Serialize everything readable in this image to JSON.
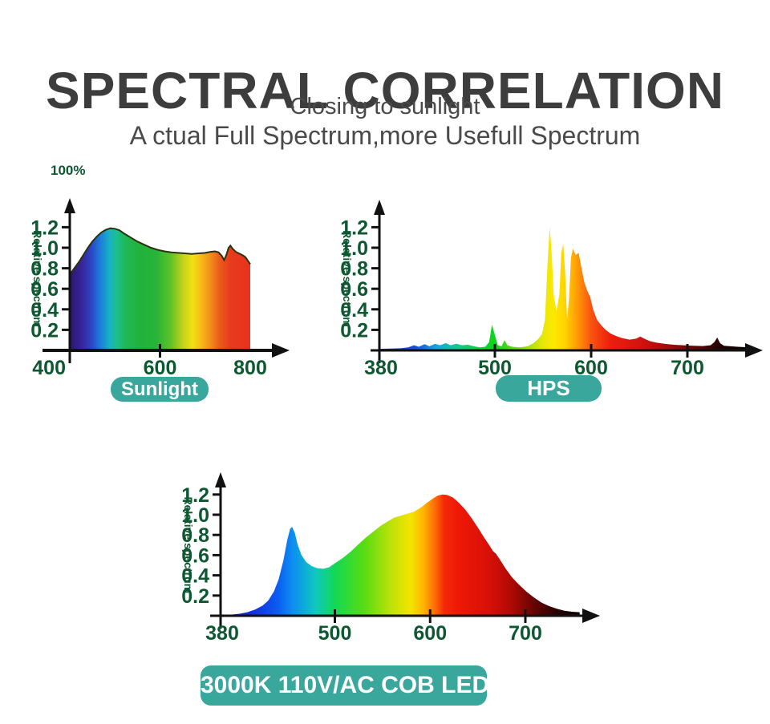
{
  "header": {
    "title": "SPECTRAL CORRELATION",
    "subtitle1": "Closing to sunlight",
    "subtitle2": "A ctual Full Spectrum,more Usefull Spectrum"
  },
  "colors": {
    "title": "#3d3d3d",
    "subtitle": "#4a4a4a",
    "axis_label_green": "#0d5731",
    "axis_line_black": "#111111",
    "badge_background": "#3aa79d",
    "badge_text": "#ffffff",
    "sunlight_curve_outline": "#2a330e"
  },
  "chart_data": [
    {
      "id": "sunlight",
      "type": "area",
      "title": "Sunlight",
      "annotation": "100%",
      "ylabel": "Relative spectrum",
      "x_ticks": [
        400,
        600,
        800
      ],
      "y_ticks": [
        0.2,
        0.4,
        0.6,
        0.8,
        1.0,
        1.2
      ],
      "xlim": [
        400,
        800
      ],
      "ylim": [
        0,
        1.3
      ],
      "grid": false,
      "legend": false,
      "points": [
        [
          400,
          0.74
        ],
        [
          410,
          0.8
        ],
        [
          420,
          0.86
        ],
        [
          430,
          0.93
        ],
        [
          440,
          1.0
        ],
        [
          450,
          1.06
        ],
        [
          460,
          1.11
        ],
        [
          470,
          1.15
        ],
        [
          480,
          1.175
        ],
        [
          490,
          1.19
        ],
        [
          500,
          1.185
        ],
        [
          510,
          1.17
        ],
        [
          520,
          1.14
        ],
        [
          535,
          1.1
        ],
        [
          550,
          1.06
        ],
        [
          565,
          1.03
        ],
        [
          580,
          1.0
        ],
        [
          595,
          0.98
        ],
        [
          610,
          0.965
        ],
        [
          625,
          0.955
        ],
        [
          640,
          0.95
        ],
        [
          655,
          0.945
        ],
        [
          670,
          0.94
        ],
        [
          685,
          0.945
        ],
        [
          700,
          0.95
        ],
        [
          712,
          0.96
        ],
        [
          722,
          0.965
        ],
        [
          730,
          0.955
        ],
        [
          737,
          0.92
        ],
        [
          742,
          0.88
        ],
        [
          747,
          0.93
        ],
        [
          752,
          1.0
        ],
        [
          756,
          1.02
        ],
        [
          761,
          0.99
        ],
        [
          768,
          0.96
        ],
        [
          775,
          0.945
        ],
        [
          782,
          0.93
        ],
        [
          789,
          0.91
        ],
        [
          794,
          0.88
        ],
        [
          800,
          0.84
        ]
      ],
      "gradient": [
        [
          0.0,
          "#2c156e"
        ],
        [
          0.07,
          "#39279c"
        ],
        [
          0.12,
          "#2b46c4"
        ],
        [
          0.17,
          "#1c7edb"
        ],
        [
          0.22,
          "#18b2c4"
        ],
        [
          0.26,
          "#1cbf8e"
        ],
        [
          0.31,
          "#1fb854"
        ],
        [
          0.38,
          "#21b33e"
        ],
        [
          0.48,
          "#27b438"
        ],
        [
          0.56,
          "#5fc327"
        ],
        [
          0.63,
          "#c6d31a"
        ],
        [
          0.68,
          "#f2e112"
        ],
        [
          0.73,
          "#f7b917"
        ],
        [
          0.78,
          "#f28c1b"
        ],
        [
          0.83,
          "#ec5b1d"
        ],
        [
          0.89,
          "#e83a1d"
        ],
        [
          1.0,
          "#e7331c"
        ]
      ]
    },
    {
      "id": "hps",
      "type": "area",
      "title": "HPS",
      "ylabel": "Relative spectrum",
      "x_ticks": [
        380,
        500,
        600,
        700
      ],
      "y_ticks": [
        0.2,
        0.4,
        0.6,
        0.8,
        1.0,
        1.2
      ],
      "xlim": [
        380,
        765
      ],
      "ylim": [
        0,
        1.3
      ],
      "grid": false,
      "legend": false,
      "points": [
        [
          380,
          0.015
        ],
        [
          392,
          0.018
        ],
        [
          402,
          0.02
        ],
        [
          410,
          0.03
        ],
        [
          416,
          0.05
        ],
        [
          421,
          0.035
        ],
        [
          427,
          0.06
        ],
        [
          432,
          0.04
        ],
        [
          438,
          0.065
        ],
        [
          443,
          0.05
        ],
        [
          449,
          0.07
        ],
        [
          454,
          0.05
        ],
        [
          460,
          0.065
        ],
        [
          466,
          0.05
        ],
        [
          472,
          0.055
        ],
        [
          478,
          0.04
        ],
        [
          484,
          0.03
        ],
        [
          490,
          0.035
        ],
        [
          494,
          0.08
        ],
        [
          497,
          0.25
        ],
        [
          500,
          0.15
        ],
        [
          503,
          0.05
        ],
        [
          507,
          0.04
        ],
        [
          510,
          0.1
        ],
        [
          513,
          0.05
        ],
        [
          518,
          0.035
        ],
        [
          526,
          0.03
        ],
        [
          534,
          0.04
        ],
        [
          540,
          0.07
        ],
        [
          545,
          0.11
        ],
        [
          549,
          0.16
        ],
        [
          552,
          0.3
        ],
        [
          555,
          0.9
        ],
        [
          557,
          1.2
        ],
        [
          559,
          0.95
        ],
        [
          561,
          0.55
        ],
        [
          564,
          0.38
        ],
        [
          567,
          0.55
        ],
        [
          569,
          0.95
        ],
        [
          571,
          1.04
        ],
        [
          573,
          0.75
        ],
        [
          575,
          0.3
        ],
        [
          577,
          0.5
        ],
        [
          579,
          0.9
        ],
        [
          581,
          0.99
        ],
        [
          584,
          0.93
        ],
        [
          587,
          0.95
        ],
        [
          590,
          0.8
        ],
        [
          593,
          0.66
        ],
        [
          596,
          0.58
        ],
        [
          599,
          0.52
        ],
        [
          602,
          0.4
        ],
        [
          606,
          0.3
        ],
        [
          610,
          0.25
        ],
        [
          615,
          0.2
        ],
        [
          620,
          0.165
        ],
        [
          626,
          0.14
        ],
        [
          632,
          0.12
        ],
        [
          640,
          0.105
        ],
        [
          647,
          0.115
        ],
        [
          651,
          0.135
        ],
        [
          655,
          0.115
        ],
        [
          661,
          0.09
        ],
        [
          668,
          0.075
        ],
        [
          676,
          0.065
        ],
        [
          686,
          0.055
        ],
        [
          696,
          0.05
        ],
        [
          706,
          0.045
        ],
        [
          716,
          0.042
        ],
        [
          724,
          0.05
        ],
        [
          728,
          0.08
        ],
        [
          731,
          0.125
        ],
        [
          734,
          0.07
        ],
        [
          738,
          0.045
        ],
        [
          745,
          0.04
        ],
        [
          752,
          0.035
        ],
        [
          765,
          0.03
        ]
      ],
      "gradient": [
        [
          0.0,
          "#1414cc"
        ],
        [
          0.1,
          "#1a51e0"
        ],
        [
          0.155,
          "#12a8e0"
        ],
        [
          0.21,
          "#0fc98c"
        ],
        [
          0.28,
          "#0cd42c"
        ],
        [
          0.312,
          "#0cd41e"
        ],
        [
          0.38,
          "#7edc10"
        ],
        [
          0.44,
          "#e6e60a"
        ],
        [
          0.47,
          "#fce800"
        ],
        [
          0.5,
          "#ffd400"
        ],
        [
          0.532,
          "#ff9d06"
        ],
        [
          0.571,
          "#fa5410"
        ],
        [
          0.623,
          "#ee1e0e"
        ],
        [
          0.7,
          "#d41410"
        ],
        [
          0.78,
          "#a30a0a"
        ],
        [
          0.857,
          "#5e0505"
        ],
        [
          0.922,
          "#200202"
        ],
        [
          1.0,
          "#050505"
        ]
      ]
    },
    {
      "id": "led",
      "type": "area",
      "title": "3000K 110V/AC COB LED",
      "ylabel": "Relative spectrum",
      "x_ticks": [
        380,
        500,
        600,
        700
      ],
      "y_ticks": [
        0.2,
        0.4,
        0.6,
        0.8,
        1.0,
        1.2
      ],
      "xlim": [
        380,
        757
      ],
      "ylim": [
        0,
        1.3
      ],
      "grid": false,
      "legend": false,
      "points": [
        [
          380,
          0.005
        ],
        [
          390,
          0.01
        ],
        [
          400,
          0.02
        ],
        [
          408,
          0.035
        ],
        [
          416,
          0.06
        ],
        [
          424,
          0.1
        ],
        [
          430,
          0.15
        ],
        [
          436,
          0.24
        ],
        [
          441,
          0.36
        ],
        [
          446,
          0.55
        ],
        [
          450,
          0.75
        ],
        [
          453,
          0.86
        ],
        [
          455,
          0.88
        ],
        [
          458,
          0.82
        ],
        [
          461,
          0.7
        ],
        [
          465,
          0.6
        ],
        [
          470,
          0.53
        ],
        [
          476,
          0.49
        ],
        [
          482,
          0.47
        ],
        [
          488,
          0.465
        ],
        [
          494,
          0.48
        ],
        [
          500,
          0.52
        ],
        [
          508,
          0.57
        ],
        [
          516,
          0.63
        ],
        [
          524,
          0.7
        ],
        [
          532,
          0.77
        ],
        [
          540,
          0.83
        ],
        [
          548,
          0.89
        ],
        [
          555,
          0.93
        ],
        [
          562,
          0.97
        ],
        [
          569,
          0.99
        ],
        [
          576,
          1.01
        ],
        [
          583,
          1.03
        ],
        [
          590,
          1.07
        ],
        [
          597,
          1.12
        ],
        [
          603,
          1.16
        ],
        [
          608,
          1.19
        ],
        [
          613,
          1.2
        ],
        [
          618,
          1.195
        ],
        [
          624,
          1.17
        ],
        [
          630,
          1.12
        ],
        [
          637,
          1.05
        ],
        [
          644,
          0.96
        ],
        [
          651,
          0.86
        ],
        [
          657,
          0.77
        ],
        [
          662,
          0.7
        ],
        [
          666,
          0.64
        ],
        [
          669,
          0.615
        ],
        [
          673,
          0.56
        ],
        [
          679,
          0.47
        ],
        [
          686,
          0.38
        ],
        [
          693,
          0.31
        ],
        [
          701,
          0.24
        ],
        [
          709,
          0.18
        ],
        [
          717,
          0.13
        ],
        [
          725,
          0.095
        ],
        [
          733,
          0.07
        ],
        [
          741,
          0.05
        ],
        [
          749,
          0.04
        ],
        [
          757,
          0.035
        ]
      ],
      "gradient": [
        [
          0.0,
          "#1812c0"
        ],
        [
          0.1,
          "#1036e0"
        ],
        [
          0.159,
          "#0b5cf2"
        ],
        [
          0.199,
          "#0c8cf0"
        ],
        [
          0.265,
          "#10c8c0"
        ],
        [
          0.318,
          "#12d855"
        ],
        [
          0.398,
          "#55dc12"
        ],
        [
          0.477,
          "#c0e208"
        ],
        [
          0.53,
          "#f4e400"
        ],
        [
          0.565,
          "#ffb400"
        ],
        [
          0.6,
          "#fc6406"
        ],
        [
          0.623,
          "#f52808"
        ],
        [
          0.66,
          "#ee1806"
        ],
        [
          0.743,
          "#da1008"
        ],
        [
          0.809,
          "#b00a05"
        ],
        [
          0.875,
          "#640403"
        ],
        [
          0.942,
          "#230101"
        ],
        [
          1.0,
          "#0c0000"
        ]
      ]
    }
  ]
}
